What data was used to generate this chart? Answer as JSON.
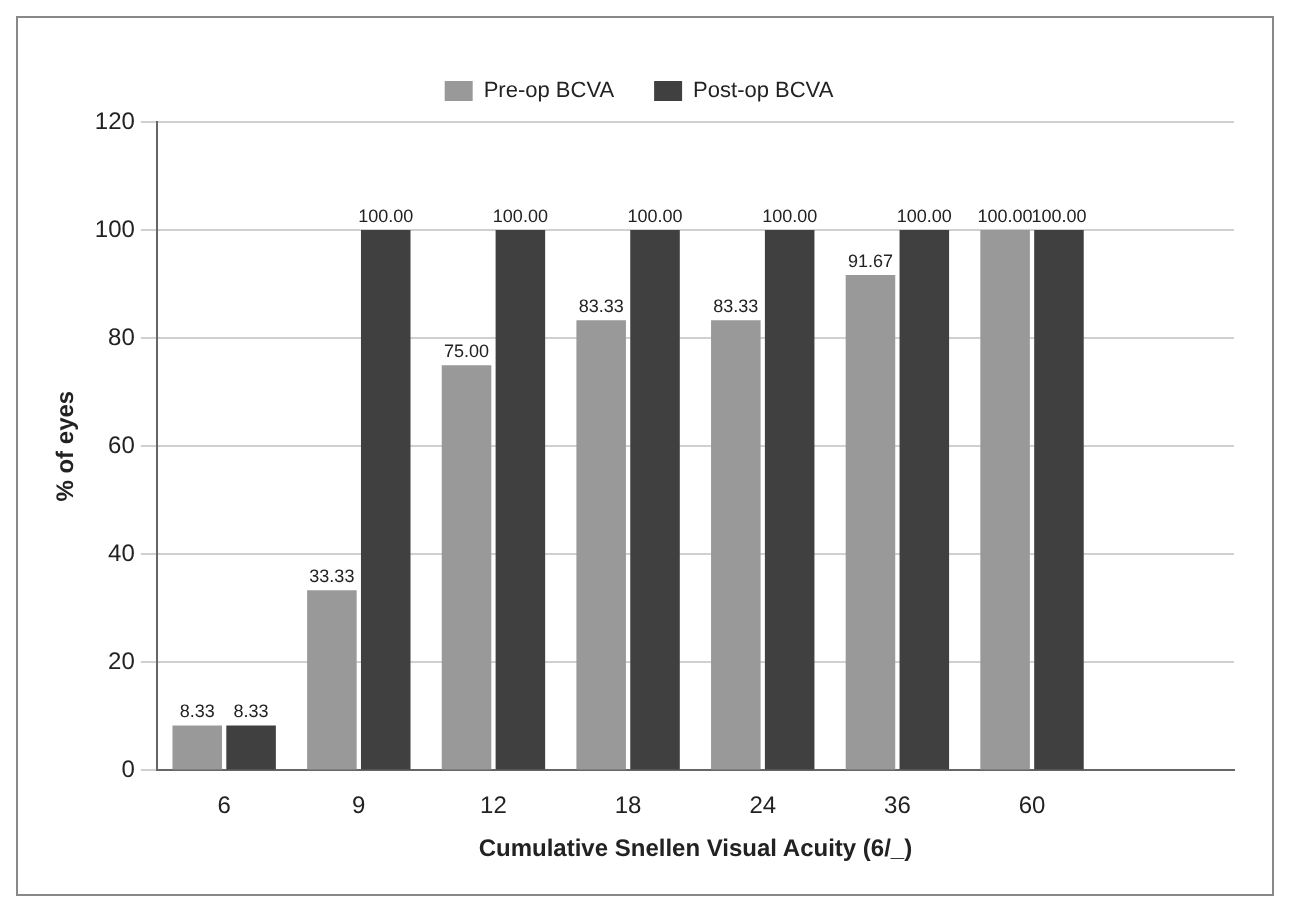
{
  "chart_data": {
    "type": "bar",
    "xlabel": "Cumulative Snellen Visual Acuity (6/_)",
    "ylabel": "% of eyes",
    "categories": [
      "6",
      "9",
      "12",
      "18",
      "24",
      "36",
      "60",
      null
    ],
    "series": [
      {
        "name": "Pre-op BCVA",
        "color": "#999999",
        "values": [
          8.33,
          33.33,
          75.0,
          83.33,
          83.33,
          91.67,
          100.0,
          null
        ],
        "value_labels": [
          "8.33",
          "33.33",
          "75.00",
          "83.33",
          "83.33",
          "91.67",
          "100.00",
          null
        ]
      },
      {
        "name": "Post-op BCVA",
        "color": "#404040",
        "values": [
          8.33,
          100.0,
          100.0,
          100.0,
          100.0,
          100.0,
          100.0,
          null
        ],
        "value_labels": [
          "8.33",
          "100.00",
          "100.00",
          "100.00",
          "100.00",
          "100.00",
          "100.00",
          null
        ]
      }
    ],
    "ylim": [
      0,
      120
    ],
    "yticks": [
      0,
      20,
      40,
      60,
      80,
      100,
      120
    ],
    "grid": "y",
    "legend": "top"
  }
}
